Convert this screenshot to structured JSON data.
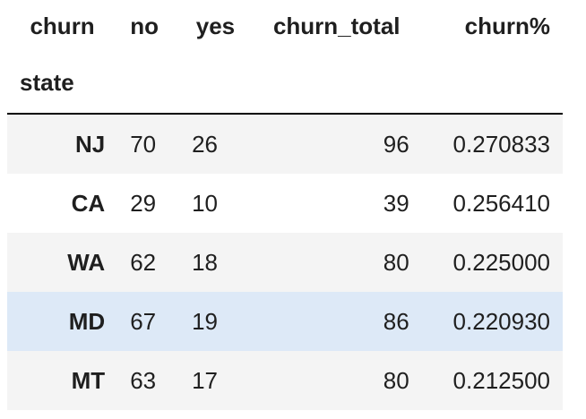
{
  "table": {
    "columns_header_label": "churn",
    "index_name": "state",
    "columns": [
      "no",
      "yes",
      "churn_total",
      "churn%"
    ],
    "rows": [
      {
        "state": "NJ",
        "no": "70",
        "yes": "26",
        "churn_total": "96",
        "churn_pct": "0.270833"
      },
      {
        "state": "CA",
        "no": "29",
        "yes": "10",
        "churn_total": "39",
        "churn_pct": "0.256410"
      },
      {
        "state": "WA",
        "no": "62",
        "yes": "18",
        "churn_total": "80",
        "churn_pct": "0.225000"
      },
      {
        "state": "MD",
        "no": "67",
        "yes": "19",
        "churn_total": "86",
        "churn_pct": "0.220930"
      },
      {
        "state": "MT",
        "no": "63",
        "yes": "17",
        "churn_total": "80",
        "churn_pct": "0.212500"
      }
    ]
  },
  "style": {
    "stripe_color": "#f4f4f4",
    "hover_color": "#dde9f7",
    "header_rule_color": "#000000"
  }
}
